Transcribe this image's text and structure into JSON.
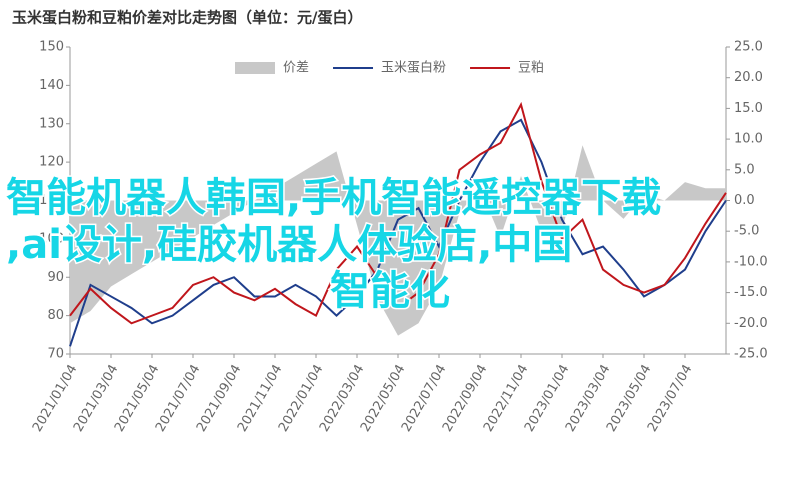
{
  "chart_data": {
    "type": "line",
    "title": "玉米蛋白粉和豆粕价差对比走势图（单位：元/蛋白）",
    "categories": [
      "2021/01/04",
      null,
      "2021/03/04",
      null,
      "2021/05/04",
      null,
      "2021/07/04",
      null,
      "2021/09/04",
      null,
      "2021/11/04",
      null,
      "2022/01/04",
      null,
      "2022/03/04",
      null,
      "2022/05/04",
      null,
      "2022/07/04",
      null,
      "2022/09/04",
      null,
      "2022/11/04",
      null,
      "2023/01/04",
      null,
      "2023/03/04",
      null,
      "2023/05/04",
      null,
      "2023/07/04",
      null,
      null
    ],
    "series": [
      {
        "name": "价差",
        "color": "#c8c8c8",
        "axis": "y2",
        "kind": "area",
        "values": [
          -20,
          -18,
          -14,
          -12,
          -10,
          -8,
          -6,
          -4,
          -2,
          0,
          2,
          4,
          6,
          8,
          -4,
          -16,
          -22,
          -20,
          -14,
          -2,
          2,
          -6,
          4,
          -5,
          -5,
          9,
          0,
          -3,
          1,
          0,
          3,
          2,
          2
        ]
      },
      {
        "name": "玉米蛋白粉",
        "color": "#1f3e8c",
        "values": [
          72,
          88,
          85,
          82,
          78,
          80,
          84,
          88,
          90,
          85,
          85,
          88,
          85,
          80,
          85,
          92,
          105,
          108,
          98,
          110,
          120,
          128,
          131,
          120,
          105,
          96,
          98,
          92,
          85,
          88,
          92,
          102,
          110
        ]
      },
      {
        "name": "豆粕",
        "color": "#c0161c",
        "values": [
          80,
          87,
          82,
          78,
          80,
          82,
          88,
          90,
          86,
          84,
          87,
          83,
          80,
          92,
          98,
          90,
          82,
          86,
          96,
          118,
          122,
          125,
          135,
          115,
          100,
          105,
          92,
          88,
          86,
          88,
          95,
          104,
          112
        ]
      }
    ],
    "ylim": [
      70,
      150
    ],
    "yticks": [
      70,
      80,
      90,
      100,
      110,
      120,
      130,
      140,
      150
    ],
    "y2lim": [
      -25,
      25
    ],
    "y2ticks": [
      {
        "value": -25,
        "label": "-25.0"
      },
      {
        "value": -20,
        "label": "-20.0"
      },
      {
        "value": -15,
        "label": "-15.0"
      },
      {
        "value": -10,
        "label": "-10.0"
      },
      {
        "value": -5,
        "label": "-5.0"
      },
      {
        "value": 0,
        "label": "0.0"
      },
      {
        "value": 5,
        "label": "5.0"
      },
      {
        "value": 10,
        "label": "10.0"
      },
      {
        "value": 15,
        "label": "15.0"
      },
      {
        "value": 20,
        "label": "20.0"
      },
      {
        "value": 25,
        "label": "25.0"
      }
    ],
    "legend": "top"
  },
  "overlay": {
    "lines": [
      "智能机器人韩国,手机智能遥控器下载",
      ",ai设计,硅胶机器人体验店,中国",
      "智能化"
    ]
  }
}
